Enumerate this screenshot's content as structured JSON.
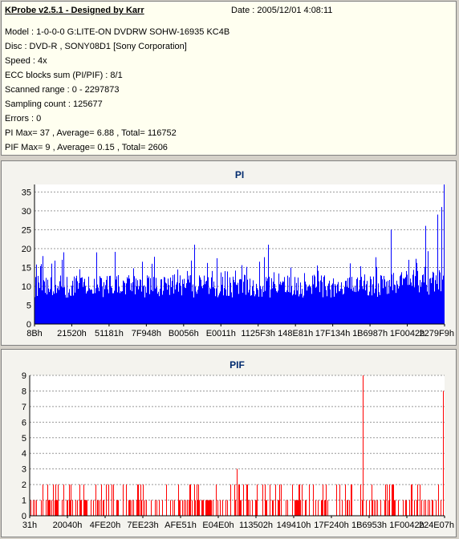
{
  "header": {
    "app_title": "KProbe v2.5.1 - Designed by Karr",
    "date": "Date : 2005/12/01 4:08:11"
  },
  "info": {
    "lines": [
      "Model : 1-0-0-0 G:LITE-ON DVDRW SOHW-16935 KC4B",
      "Disc : DVD-R , SONY08D1 [Sony Corporation]",
      "Speed : 4x",
      "ECC blocks sum (PI/PIF) : 8/1",
      "Scanned range : 0 - 2297873",
      "Sampling count : 125677",
      "Errors : 0",
      "PI Max= 37 , Average= 6.88 , Total= 116752",
      "PIF Max= 9 , Average= 0.15 , Total= 2606"
    ]
  },
  "colors": {
    "pi_bars": "#0000ff",
    "pif_bars": "#ff0000",
    "panel_bg": "#fffff0",
    "title_color": "#002a6e"
  },
  "chart_data": [
    {
      "type": "bar",
      "title": "PI",
      "ylim": [
        0,
        37
      ],
      "yticks": [
        0,
        5,
        10,
        15,
        20,
        25,
        30,
        35
      ],
      "xticks": [
        "8Bh",
        "21520h",
        "51181h",
        "7F948h",
        "B0056h",
        "E0011h",
        "1125F3h",
        "148E81h",
        "17F134h",
        "1B6987h",
        "1F0042h",
        "2279F9h"
      ],
      "grid": true,
      "baseline_range": [
        7,
        13
      ],
      "spikes": [
        {
          "pos": 0.02,
          "value": 18
        },
        {
          "pos": 0.07,
          "value": 19
        },
        {
          "pos": 0.15,
          "value": 19
        },
        {
          "pos": 0.39,
          "value": 21
        },
        {
          "pos": 0.57,
          "value": 21
        },
        {
          "pos": 0.87,
          "value": 25
        },
        {
          "pos": 0.955,
          "value": 26
        },
        {
          "pos": 0.985,
          "value": 29
        },
        {
          "pos": 0.995,
          "value": 31
        },
        {
          "pos": 1.0,
          "value": 37
        }
      ],
      "max": 37,
      "average": 6.88
    },
    {
      "type": "bar",
      "title": "PIF",
      "ylim": [
        0,
        9
      ],
      "yticks": [
        0,
        1,
        2,
        3,
        4,
        5,
        6,
        7,
        8,
        9
      ],
      "xticks": [
        "31h",
        "20040h",
        "4FE20h",
        "7EE23h",
        "AFE51h",
        "E04E0h",
        "113502h",
        "149410h",
        "17F240h",
        "1B6953h",
        "1F0042h",
        "224E07h"
      ],
      "grid": true,
      "spikes": [
        {
          "pos": 0.5,
          "value": 3
        },
        {
          "pos": 0.805,
          "value": 9
        },
        {
          "pos": 0.998,
          "value": 8
        }
      ],
      "max": 9,
      "average": 0.15
    }
  ]
}
